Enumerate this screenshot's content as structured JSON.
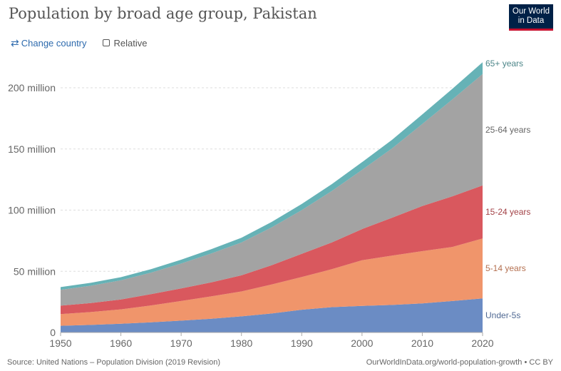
{
  "title": "Population by broad age group, Pakistan",
  "logo": {
    "line1": "Our World",
    "line2": "in Data"
  },
  "controls": {
    "change_country": "Change country",
    "relative": "Relative"
  },
  "footer": {
    "source": "Source: United Nations – Population Division (2019 Revision)",
    "link": "OurWorldInData.org/world-population-growth • CC BY"
  },
  "chart_data": {
    "type": "area",
    "stacked": true,
    "x": [
      1950,
      1955,
      1960,
      1965,
      1970,
      1975,
      1980,
      1985,
      1990,
      1995,
      2000,
      2005,
      2010,
      2015,
      2020
    ],
    "xlim": [
      1950,
      2020
    ],
    "ylim": [
      0,
      200000000
    ],
    "x_ticks": [
      1950,
      1960,
      1970,
      1980,
      1990,
      2000,
      2010,
      2020
    ],
    "y_ticks": [
      {
        "value": 0,
        "label": "0"
      },
      {
        "value": 50000000,
        "label": "50 million"
      },
      {
        "value": 100000000,
        "label": "100 million"
      },
      {
        "value": 150000000,
        "label": "150 million"
      },
      {
        "value": 200000000,
        "label": "200 million"
      }
    ],
    "grid": true,
    "legend_placement": "right",
    "series": [
      {
        "name": "Under-5s",
        "color": "#6b8cc4",
        "values": [
          5500000,
          6200000,
          7200000,
          8300000,
          9700000,
          11200000,
          13200000,
          15500000,
          18600000,
          20700000,
          21700000,
          22500000,
          23800000,
          25700000,
          27900000
        ]
      },
      {
        "name": "5-14 years",
        "color": "#f0956b",
        "values": [
          9500000,
          10500000,
          11700000,
          13800000,
          16000000,
          18300000,
          20300000,
          23700000,
          26700000,
          31000000,
          37300000,
          40300000,
          42700000,
          44200000,
          48900000
        ]
      },
      {
        "name": "15-24 years",
        "color": "#d9585e",
        "values": [
          6900000,
          7300000,
          8100000,
          9200000,
          10300000,
          11500000,
          13200000,
          15800000,
          19000000,
          21900000,
          25500000,
          31000000,
          36800000,
          41400000,
          43400000
        ]
      },
      {
        "name": "25-64 years",
        "color": "#a3a3a3",
        "values": [
          12900000,
          14200000,
          15600000,
          17600000,
          20300000,
          23600000,
          26800000,
          30900000,
          35700000,
          42100000,
          48400000,
          56700000,
          67100000,
          79200000,
          91000000
        ]
      },
      {
        "name": "65+ years",
        "color": "#66b2b6",
        "values": [
          2300000,
          2400000,
          2600000,
          2900000,
          3200000,
          3500000,
          3900000,
          4400000,
          5000000,
          5600000,
          6300000,
          7000000,
          7800000,
          8700000,
          9700000
        ]
      }
    ]
  }
}
